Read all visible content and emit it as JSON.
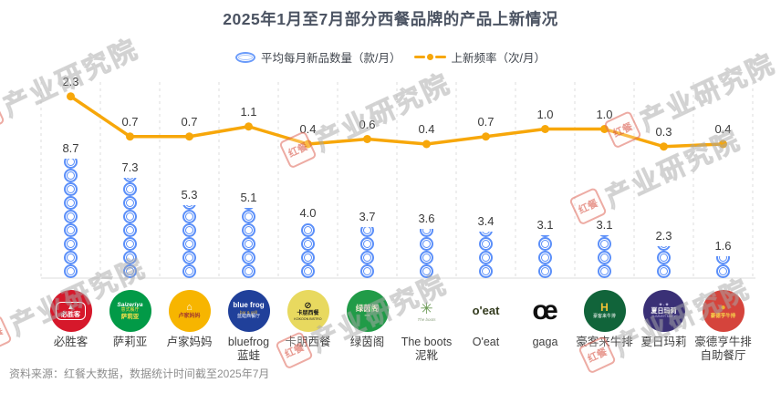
{
  "title": "2025年1月至7月部分西餐品牌的产品上新情况",
  "legend": [
    {
      "label": "平均每月新品数量（款/月）",
      "icon": "blue-ring-icon",
      "color": "#5b8ff9"
    },
    {
      "label": "上新频率（次/月）",
      "icon": "orange-line-dot-icon",
      "color": "#f7a70a"
    }
  ],
  "footer": "资料来源：红餐大数据，数据统计时间截至2025年7月",
  "watermark": {
    "logo_text": "红餐",
    "text": "产业研究院"
  },
  "colors": {
    "ring_blue": "#5b8ff9",
    "line_orange": "#f7a70a",
    "value_label": "#3a3a3a",
    "grid": "#dedede",
    "baseline": "#e3e3e3",
    "title": "#4b5362",
    "footer": "#8e8e8e"
  },
  "chart_data": {
    "type": "combo-pictogram-bar-and-line",
    "categories": [
      "必胜客",
      "萨莉亚",
      "卢家妈妈",
      "bluefrog蓝蛙",
      "卡朋西餐",
      "绿茵阁",
      "The boots泥靴",
      "O'eat",
      "gaga",
      "豪客来牛排",
      "夏日玛莉",
      "豪德亨牛排自助餐厅"
    ],
    "series": [
      {
        "name": "平均每月新品数量（款/月）",
        "type": "pictogram",
        "symbol": "blue-ring",
        "values": [
          8.7,
          7.3,
          5.3,
          5.1,
          4.0,
          3.7,
          3.6,
          3.4,
          3.1,
          3.1,
          2.3,
          1.6
        ]
      },
      {
        "name": "上新频率（次/月）",
        "type": "line",
        "color": "#f7a70a",
        "values": [
          2.3,
          0.7,
          0.7,
          1.1,
          0.4,
          0.6,
          0.4,
          0.7,
          1.0,
          1.0,
          0.3,
          0.4
        ]
      }
    ],
    "grid": "vertical-dashed",
    "legend_position": "top-center",
    "value_labels": "shown-one-decimal"
  },
  "brands": [
    {
      "label_lines": [
        "必胜客"
      ],
      "logo": {
        "bg": "#d6182b",
        "box": true,
        "lines": [
          {
            "t": "▲",
            "c": "#ffffff",
            "s": 8
          },
          {
            "t": "必胜客",
            "c": "#ffffff",
            "s": 7,
            "b": 1
          }
        ]
      }
    },
    {
      "label_lines": [
        "萨莉亚"
      ],
      "logo": {
        "bg": "#029a47",
        "lines": [
          {
            "t": "Saizeriya",
            "c": "#ffffff",
            "s": 6.5,
            "b": 1,
            "i": 1
          },
          {
            "t": "意式餐厅",
            "c": "#f7e04b",
            "s": 5
          },
          {
            "t": "萨莉亚",
            "c": "#f7e04b",
            "s": 6.5,
            "b": 1
          }
        ]
      }
    },
    {
      "label_lines": [
        "卢家妈妈"
      ],
      "logo": {
        "bg": "#f7b500",
        "lines": [
          {
            "t": "⌂",
            "c": "#ffffff",
            "s": 11
          },
          {
            "t": "卢家妈妈",
            "c": "#a33b2e",
            "s": 6,
            "b": 1
          }
        ]
      }
    },
    {
      "label_lines": [
        "bluefrog",
        "蓝蛙"
      ],
      "logo": {
        "bg": "#20409a",
        "lines": [
          {
            "t": "blue frog",
            "c": "#ffffff",
            "s": 8,
            "b": 1
          },
          {
            "t": "bar & grill",
            "c": "#e8b93b",
            "s": 4.5
          },
          {
            "t": "蓝蛙西餐厅",
            "c": "#ffffff",
            "s": 5
          }
        ]
      }
    },
    {
      "label_lines": [
        "卡朋西餐"
      ],
      "logo": {
        "bg": "#e8d95f",
        "lines": [
          {
            "t": "⊘",
            "c": "#1a1a1a",
            "s": 10,
            "b": 1
          },
          {
            "t": "卡朋西餐",
            "c": "#1a1a1a",
            "s": 6,
            "b": 1
          },
          {
            "t": "KOKOON BISTRO",
            "c": "#1a1a1a",
            "s": 3.6
          }
        ]
      }
    },
    {
      "label_lines": [
        "绿茵阁"
      ],
      "logo": {
        "bg": "#219b48",
        "lines": [
          {
            "t": "绿茵阁",
            "c": "#f0ead2",
            "s": 8.5,
            "b": 1
          },
          {
            "t": "▪▪▪▪",
            "c": "#f0ead2",
            "s": 4
          }
        ]
      }
    },
    {
      "label_lines": [
        "The boots",
        "泥靴"
      ],
      "logo": {
        "bg": "none",
        "lines": [
          {
            "t": "✳",
            "c": "#6b9a55",
            "s": 17
          },
          {
            "t": "The boots",
            "c": "#8fa483",
            "s": 4.5,
            "i": 1
          }
        ]
      }
    },
    {
      "label_lines": [
        "O'eat"
      ],
      "logo": {
        "bg": "none",
        "lines": [
          {
            "t": "o'eat",
            "c": "#333b1e",
            "s": 13,
            "b": 1
          }
        ]
      }
    },
    {
      "label_lines": [
        "gaga"
      ],
      "logo": {
        "bg": "none",
        "lines": [
          {
            "t": "œ",
            "c": "#101010",
            "s": 30,
            "b": 1
          }
        ]
      }
    },
    {
      "label_lines": [
        "豪客来牛排"
      ],
      "logo": {
        "bg": "#11643a",
        "lines": [
          {
            "t": "H",
            "c": "#f2c335",
            "s": 12,
            "b": 1
          },
          {
            "t": "豪客来牛排",
            "c": "#ffffff",
            "s": 5
          }
        ]
      }
    },
    {
      "label_lines": [
        "夏日玛莉"
      ],
      "logo": {
        "bg": "#3a3076",
        "lines": [
          {
            "t": "✦·✦",
            "c": "#cfc9ee",
            "s": 6
          },
          {
            "t": "夏日玛莉",
            "c": "#ffffff",
            "s": 7,
            "b": 1
          },
          {
            "t": "SUMMER MARY",
            "c": "#b9b1e0",
            "s": 3.5
          }
        ]
      }
    },
    {
      "label_lines": [
        "豪德亨牛排",
        "自助餐厅"
      ],
      "logo": {
        "bg": "#d5443c",
        "lines": [
          {
            "t": "●",
            "c": "#f0b42c",
            "s": 10
          },
          {
            "t": "豪德亨牛排",
            "c": "#f6d14b",
            "s": 5.5,
            "b": 1
          }
        ]
      }
    }
  ]
}
